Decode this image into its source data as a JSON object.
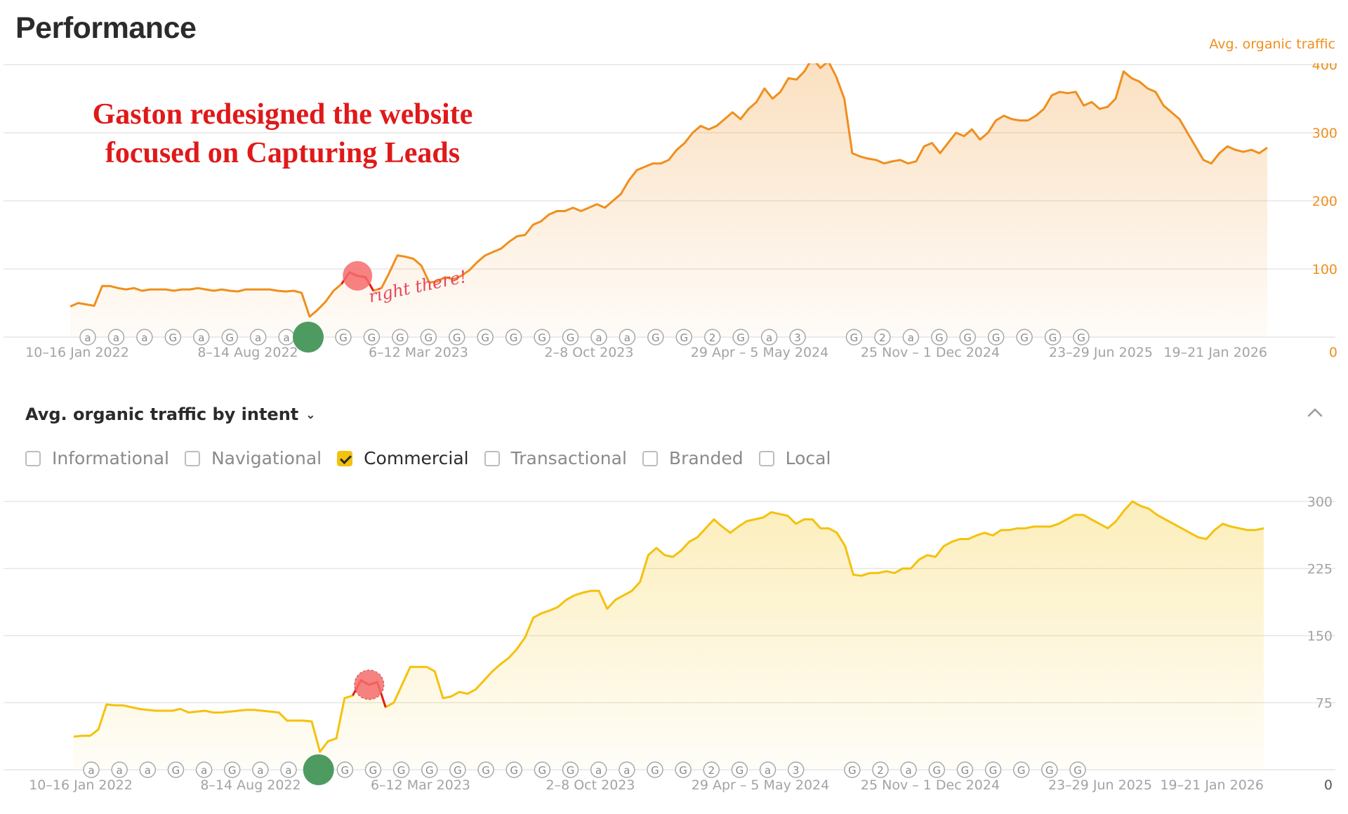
{
  "page": {
    "title": "Performance",
    "annotation_lines": [
      "Gaston redesigned the website",
      "focused on Capturing Leads"
    ],
    "handwritten_note": "right there!"
  },
  "intent_section": {
    "title": "Avg. organic traffic by intent",
    "filters": [
      {
        "label": "Informational",
        "checked": false
      },
      {
        "label": "Navigational",
        "checked": false
      },
      {
        "label": "Commercial",
        "checked": true
      },
      {
        "label": "Transactional",
        "checked": false
      },
      {
        "label": "Branded",
        "checked": false
      },
      {
        "label": "Local",
        "checked": false
      }
    ]
  },
  "colors": {
    "orange": "#ef8f1d",
    "yellow": "#f4c20d",
    "marker_green": "#4e9b62",
    "marker_red": "#f56c6c",
    "grid": "#e6e6e6",
    "axis_text": "#a3a3a3"
  },
  "event_icons": [
    "a",
    "a",
    "a",
    "G",
    "a",
    "G",
    "a",
    "a",
    "G",
    "G",
    "G",
    "G",
    "G",
    "G",
    "G",
    "G",
    "G",
    "G",
    "a",
    "a",
    "G",
    "G",
    "2",
    "G",
    "a",
    "3",
    "G",
    "2",
    "a",
    "G",
    "G",
    "G",
    "G",
    "G",
    "G"
  ],
  "chart_data": [
    {
      "type": "area",
      "series_label": "Avg. organic traffic",
      "x_tick_labels": [
        "10–16 Jan 2022",
        "8–14 Aug 2022",
        "6–12 Mar 2023",
        "2–8 Oct 2023",
        "29 Apr – 5 May 2024",
        "25 Nov – 1 Dec 2024",
        "23–29 Jun 2025",
        "19–21 Jan 2026"
      ],
      "y_ticks": [
        0,
        100,
        200,
        300,
        400
      ],
      "ylim": [
        0,
        400
      ],
      "y_axis_side": "right",
      "series": [
        {
          "values": [
            45,
            50,
            48,
            46,
            75,
            75,
            72,
            70,
            72,
            68,
            70,
            70,
            70,
            68,
            70,
            70,
            72,
            70,
            68,
            70,
            68,
            67,
            70,
            70,
            70,
            70,
            68,
            67,
            68,
            65,
            30,
            40,
            52,
            68,
            78,
            95,
            90,
            88,
            68,
            72,
            95,
            120,
            118,
            115,
            105,
            80,
            82,
            88,
            85,
            90,
            98,
            110,
            120,
            125,
            130,
            140,
            148,
            150,
            165,
            170,
            180,
            185,
            185,
            190,
            185,
            190,
            195,
            190,
            200,
            210,
            230,
            245,
            250,
            255,
            255,
            260,
            275,
            285,
            300,
            310,
            305,
            310,
            320,
            330,
            320,
            335,
            345,
            365,
            350,
            360,
            380,
            378,
            390,
            410,
            395,
            405,
            382,
            350,
            270,
            265,
            262,
            260,
            255,
            258,
            260,
            255,
            258,
            280,
            285,
            270,
            285,
            300,
            295,
            305,
            290,
            300,
            318,
            325,
            320,
            318,
            318,
            325,
            335,
            355,
            360,
            358,
            360,
            340,
            345,
            335,
            338,
            350,
            390,
            380,
            375,
            365,
            360,
            340,
            330,
            320,
            300,
            280,
            260,
            255,
            270,
            280,
            275,
            272,
            275,
            270,
            278
          ]
        }
      ],
      "highlight_range": [
        34,
        38
      ]
    },
    {
      "type": "area",
      "x_tick_labels": [
        "10–16 Jan 2022",
        "8–14 Aug 2022",
        "6–12 Mar 2023",
        "2–8 Oct 2023",
        "29 Apr – 5 May 2024",
        "25 Nov – 1 Dec 2024",
        "23–29 Jun 2025",
        "19–21 Jan 2026"
      ],
      "y_ticks": [
        0,
        75,
        150,
        225,
        300
      ],
      "ylim": [
        0,
        300
      ],
      "y_axis_side": "right",
      "series": [
        {
          "values": [
            37,
            38,
            38,
            45,
            73,
            72,
            72,
            70,
            68,
            67,
            66,
            66,
            66,
            68,
            64,
            65,
            66,
            64,
            64,
            65,
            66,
            67,
            67,
            66,
            65,
            64,
            55,
            55,
            55,
            54,
            20,
            32,
            35,
            80,
            83,
            100,
            95,
            98,
            70,
            75,
            95,
            115,
            115,
            115,
            110,
            80,
            82,
            87,
            85,
            90,
            100,
            110,
            118,
            125,
            135,
            148,
            170,
            175,
            178,
            182,
            190,
            195,
            198,
            200,
            200,
            180,
            190,
            195,
            200,
            210,
            240,
            248,
            240,
            238,
            245,
            255,
            260,
            270,
            280,
            272,
            265,
            272,
            278,
            280,
            282,
            288,
            286,
            284,
            275,
            280,
            280,
            270,
            270,
            265,
            250,
            218,
            217,
            220,
            220,
            222,
            220,
            225,
            225,
            235,
            240,
            238,
            250,
            255,
            258,
            258,
            262,
            265,
            262,
            268,
            268,
            270,
            270,
            272,
            272,
            272,
            275,
            280,
            285,
            285,
            280,
            275,
            270,
            278,
            290,
            300,
            295,
            292,
            285,
            280,
            275,
            270,
            265,
            260,
            258,
            268,
            275,
            272,
            270,
            268,
            268,
            270
          ]
        }
      ],
      "highlight_range": [
        34,
        38
      ]
    }
  ]
}
